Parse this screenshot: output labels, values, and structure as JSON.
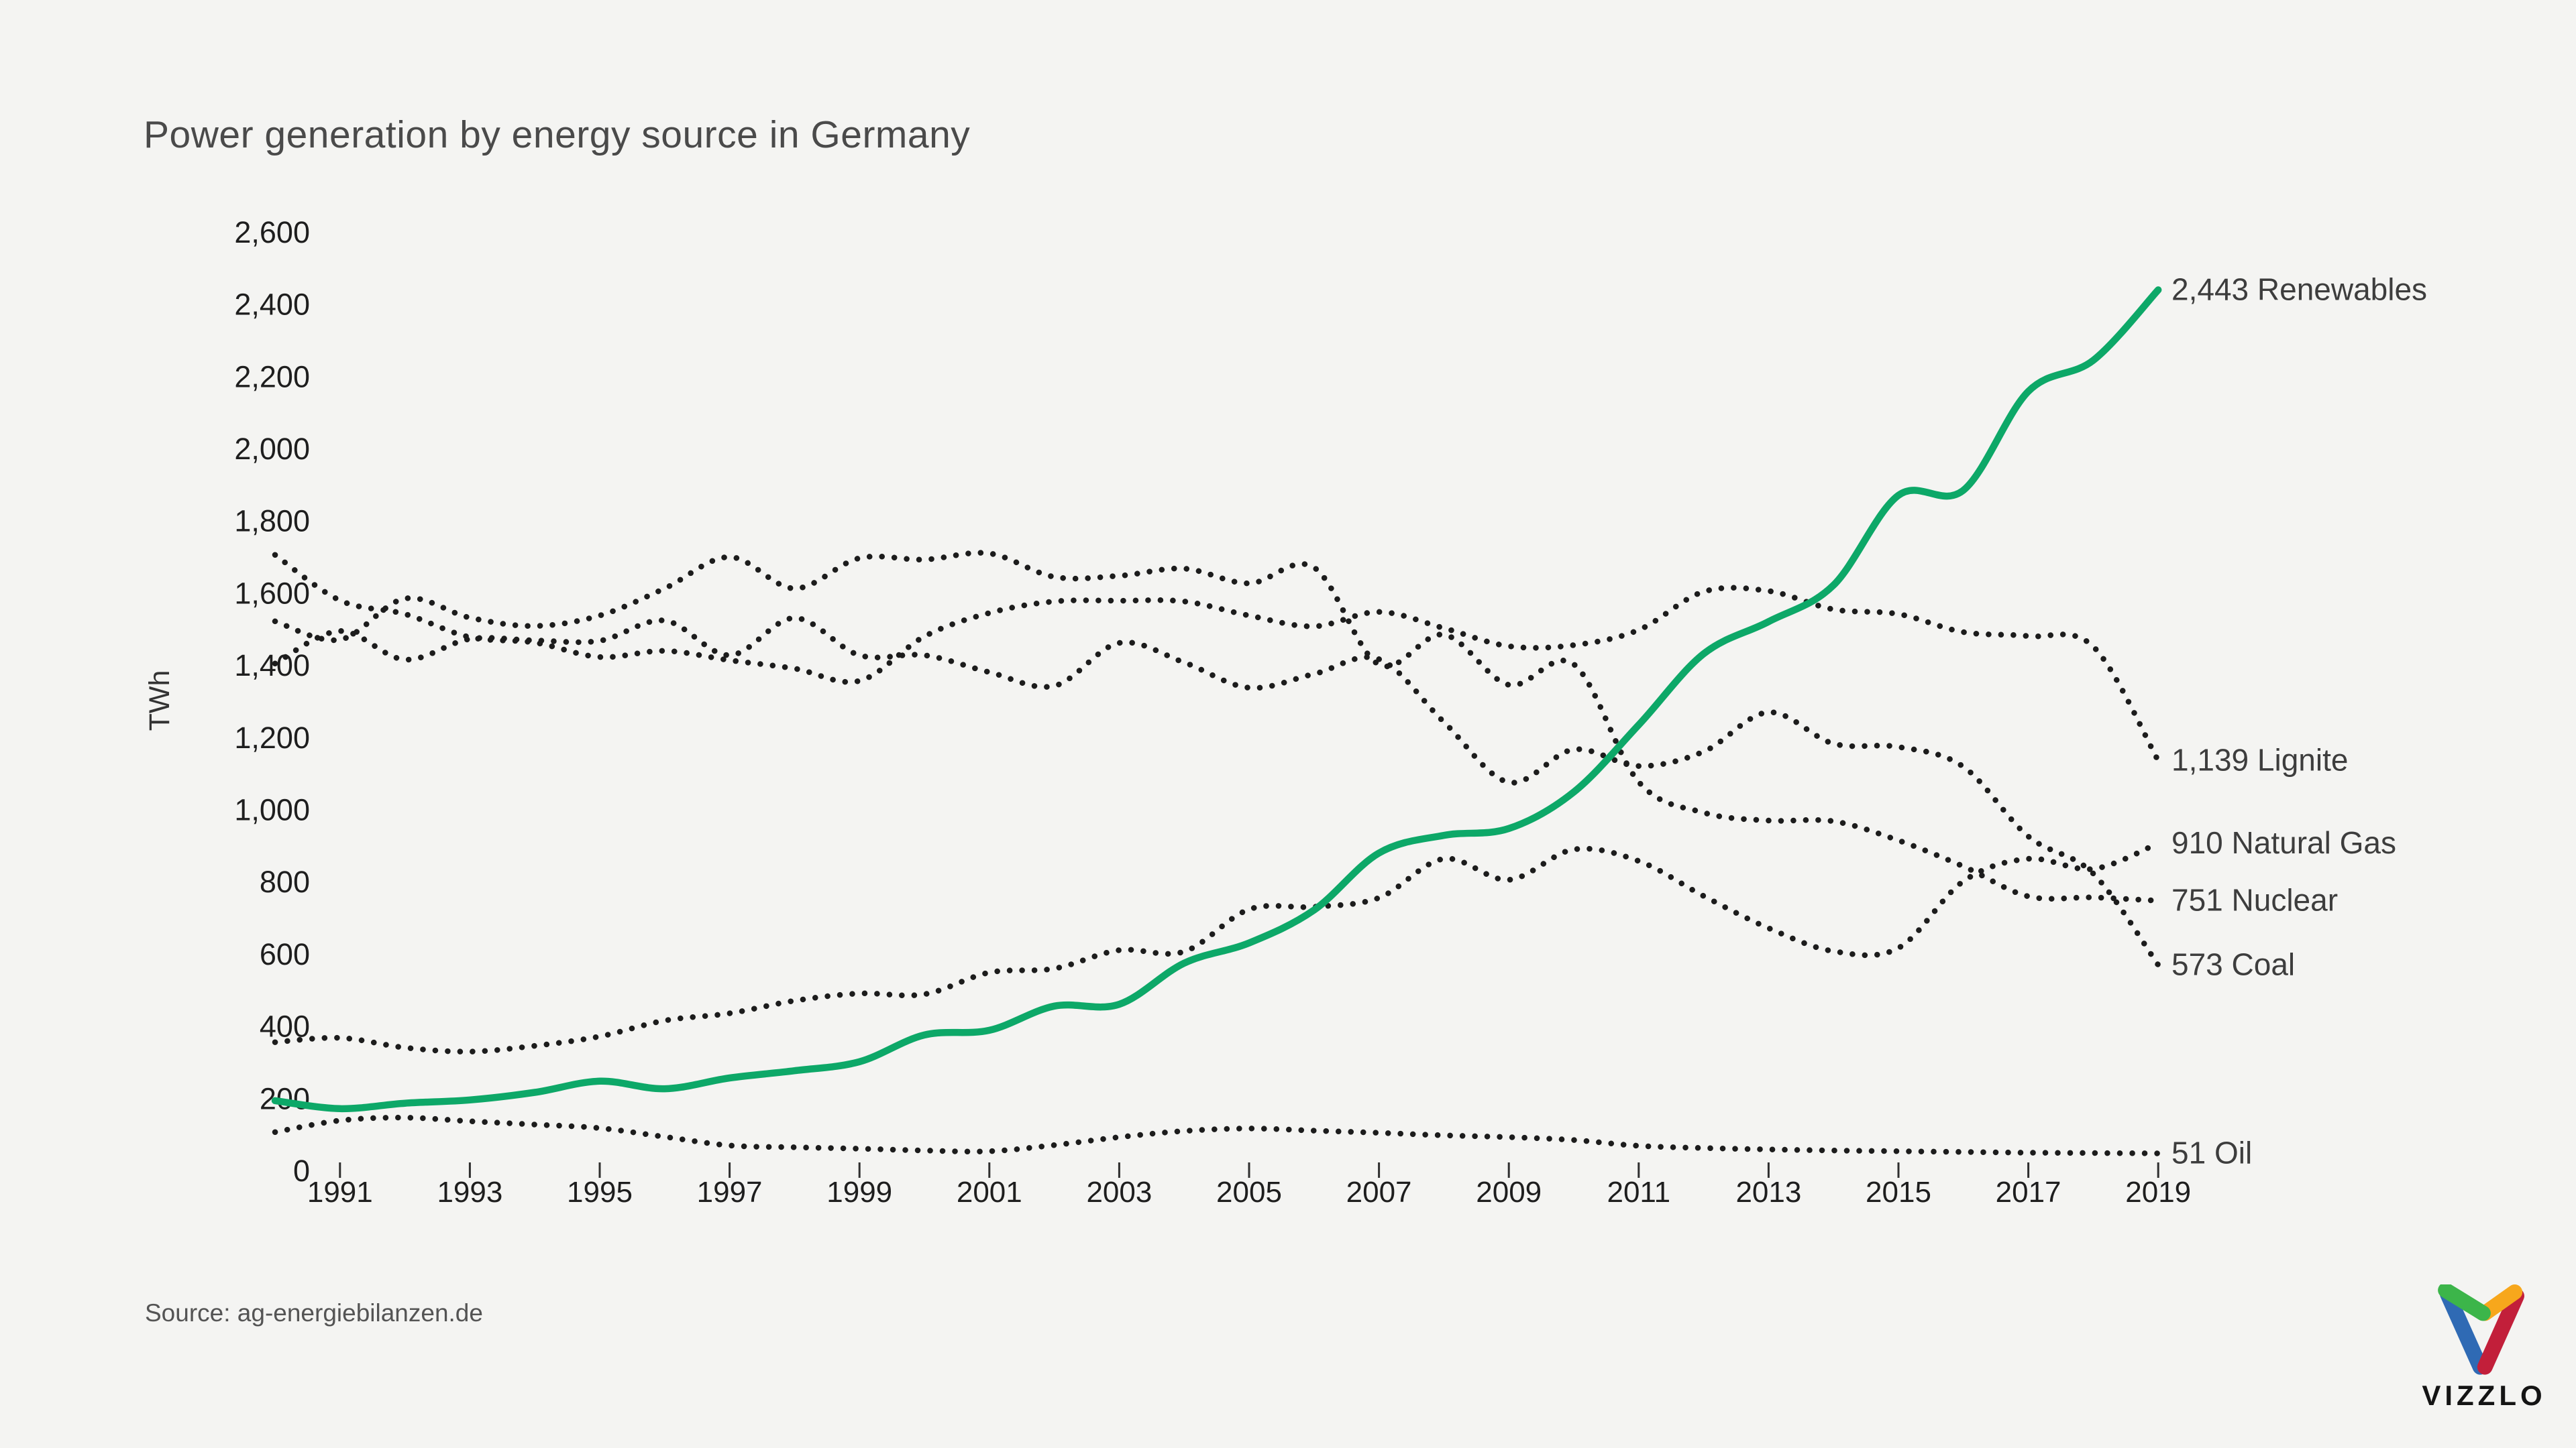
{
  "page": {
    "background": "#f4f4f2",
    "title": "Power generation by energy source in Germany",
    "source": "Source: ag-energiebilanzen.de",
    "logo_text": "VIZZLO"
  },
  "chart_data": {
    "type": "line",
    "title": "Power generation by energy source in Germany",
    "ylabel": "TWh",
    "xlabel": "",
    "x_range": [
      1990,
      2019
    ],
    "ylim": [
      0,
      2600
    ],
    "y_tick_step": 200,
    "grid": false,
    "legend_position": "end-of-line-labels-right",
    "background_color": "#f4f4f2",
    "dotted_line_color": "#1c1c1c",
    "accent_color": "#0da868",
    "y_tick_labels": [
      "0",
      "200",
      "400",
      "600",
      "800",
      "1,000",
      "1,200",
      "1,400",
      "1,600",
      "1,800",
      "2,000",
      "2,200",
      "2,400",
      "2,600"
    ],
    "x_tick_labels": [
      "1991",
      "1993",
      "1995",
      "1997",
      "1999",
      "2001",
      "2003",
      "2005",
      "2007",
      "2009",
      "2011",
      "2013",
      "2015",
      "2017",
      "2019"
    ],
    "x": [
      1990,
      1991,
      1992,
      1993,
      1994,
      1995,
      1996,
      1997,
      1998,
      1999,
      2000,
      2001,
      2002,
      2003,
      2004,
      2005,
      2006,
      2007,
      2008,
      2009,
      2010,
      2011,
      2012,
      2013,
      2014,
      2015,
      2016,
      2017,
      2018,
      2019
    ],
    "series": [
      {
        "name": "Oil",
        "style": "dotted",
        "color": "#1c1c1c",
        "end_label": "51 Oil",
        "end_value": 51,
        "values": [
          110,
          142,
          150,
          140,
          131,
          121,
          97,
          73,
          68,
          64,
          59,
          57,
          74,
          96,
          113,
          120,
          114,
          108,
          101,
          96,
          88,
          72,
          66,
          62,
          59,
          57,
          55,
          53,
          52,
          51
        ]
      },
      {
        "name": "Coal",
        "style": "dotted",
        "color": "#1c1c1c",
        "end_label": "573 Coal",
        "end_value": 573,
        "values": [
          1408,
          1498,
          1419,
          1476,
          1472,
          1471,
          1527,
          1431,
          1534,
          1431,
          1431,
          1384,
          1346,
          1465,
          1411,
          1341,
          1379,
          1420,
          1246,
          1079,
          1170,
          1124,
          1164,
          1273,
          1186,
          1177,
          1122,
          929,
          826,
          573
        ]
      },
      {
        "name": "Nuclear",
        "style": "dotted",
        "color": "#1c1c1c",
        "end_label": "751 Nuclear",
        "end_value": 751,
        "values": [
          1525,
          1474,
          1588,
          1535,
          1512,
          1541,
          1616,
          1703,
          1616,
          1700,
          1696,
          1713,
          1648,
          1651,
          1671,
          1630,
          1674,
          1405,
          1488,
          1349,
          1406,
          1080,
          995,
          973,
          971,
          918,
          846,
          763,
          760,
          751
        ]
      },
      {
        "name": "Natural Gas",
        "style": "dotted",
        "color": "#1c1c1c",
        "end_label": "910 Natural Gas",
        "end_value": 910,
        "values": [
          359,
          371,
          344,
          333,
          349,
          375,
          419,
          439,
          474,
          494,
          492,
          552,
          563,
          614,
          610,
          727,
          734,
          759,
          867,
          809,
          893,
          861,
          764,
          675,
          611,
          620,
          805,
          867,
          839,
          910
        ]
      },
      {
        "name": "Lignite",
        "style": "dotted",
        "color": "#1c1c1c",
        "end_label": "1,139 Lignite",
        "end_value": 1139,
        "values": [
          1709,
          1583,
          1545,
          1481,
          1466,
          1426,
          1443,
          1417,
          1394,
          1360,
          1483,
          1548,
          1580,
          1582,
          1580,
          1541,
          1511,
          1551,
          1506,
          1456,
          1459,
          1501,
          1607,
          1609,
          1558,
          1545,
          1495,
          1484,
          1455,
          1139
        ]
      },
      {
        "name": "Renewables",
        "style": "solid",
        "color": "#0da868",
        "end_label": "2,443 Renewables",
        "end_value": 2443,
        "values": [
          197,
          175,
          190,
          199,
          220,
          251,
          230,
          260,
          280,
          305,
          379,
          392,
          459,
          464,
          578,
          634,
          725,
          883,
          932,
          951,
          1052,
          1238,
          1435,
          1524,
          1625,
          1874,
          1888,
          2162,
          2248,
          2443
        ]
      }
    ],
    "logo_colors": {
      "green": "#3cb54a",
      "blue": "#2f6ab4",
      "orange": "#f7a71c",
      "red": "#c21f3a"
    }
  }
}
